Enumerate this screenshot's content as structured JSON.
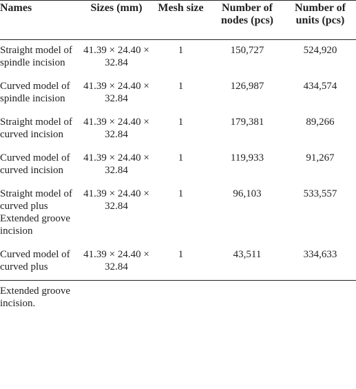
{
  "table": {
    "header": [
      "Names",
      "Sizes (mm)",
      "Mesh size",
      "Number of nodes (pcs)",
      "Number of units (pcs)"
    ],
    "rows": [
      [
        "Straight model of spindle incision",
        "41.39 × 24.40 × 32.84",
        "1",
        "150,727",
        "524,920"
      ],
      [
        "Curved model of spindle incision",
        "41.39 × 24.40 × 32.84",
        "1",
        "126,987",
        "434,574"
      ],
      [
        "Straight model of curved incision",
        "41.39 × 24.40 × 32.84",
        "1",
        "179,381",
        "89,266"
      ],
      [
        "Curved model of curved incision",
        "41.39 × 24.40 × 32.84",
        "1",
        "119,933",
        "91,267"
      ],
      [
        "Straight model of curved plus Extended groove incision",
        "41.39 × 24.40 × 32.84",
        "1",
        "96,103",
        "533,557"
      ],
      [
        "Curved model of curved plus",
        "41.39 × 24.40 × 32.84",
        "1",
        "43,511",
        "334,633"
      ]
    ],
    "note": "Extended groove incision."
  }
}
